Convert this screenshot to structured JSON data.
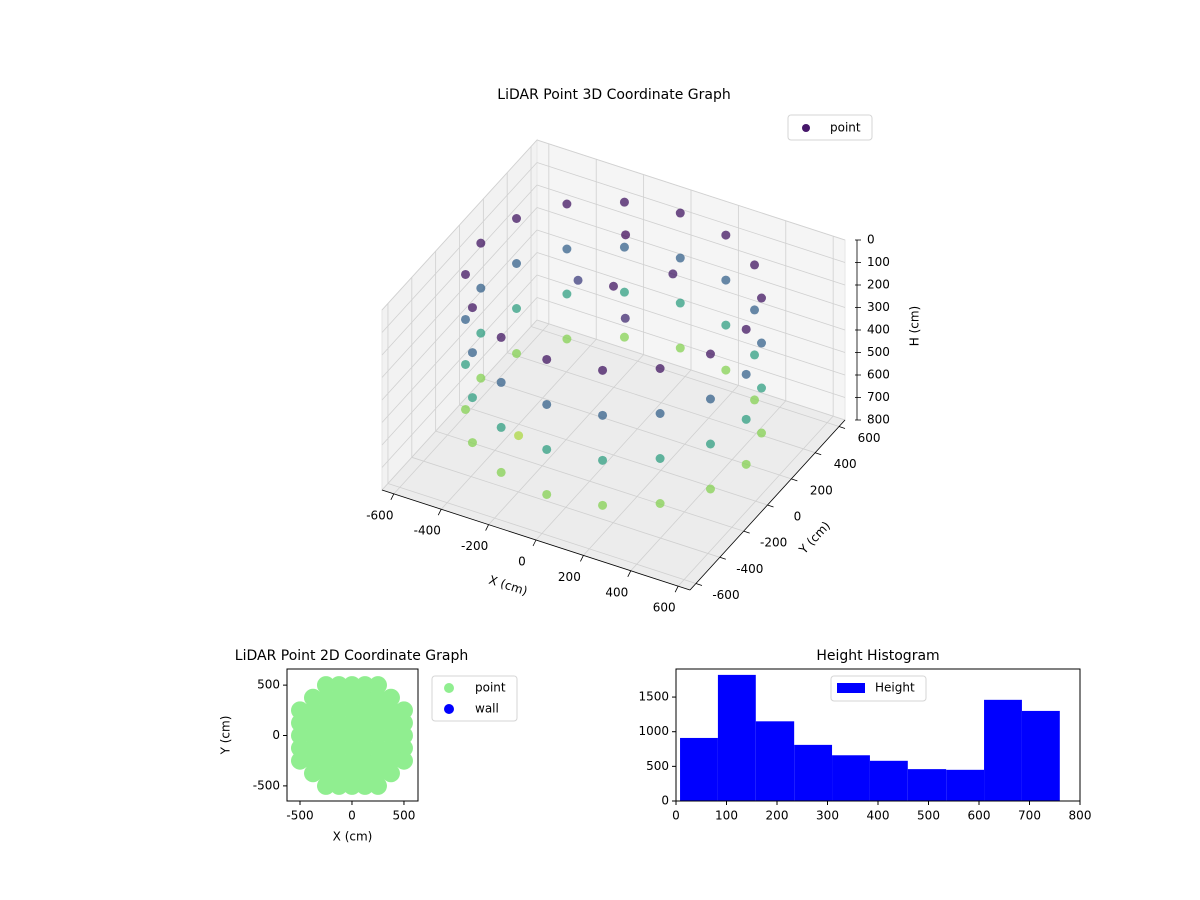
{
  "chart_data": [
    {
      "type": "scatter3d",
      "title": "LiDAR Point 3D Coordinate Graph",
      "x_label": "X (cm)",
      "y_label": "Y (cm)",
      "z_label": "H (cm)",
      "xlim": [
        -650,
        650
      ],
      "ylim": [
        -650,
        650
      ],
      "zlim": [
        800,
        0
      ],
      "xticks": [
        -600,
        -400,
        -200,
        0,
        200,
        400,
        600
      ],
      "yticks": [
        -600,
        -400,
        -200,
        0,
        200,
        400,
        600
      ],
      "zticks": [
        0,
        100,
        200,
        300,
        400,
        500,
        600,
        700,
        800
      ],
      "grid": true,
      "cmap": "viridis",
      "legend": "upper right",
      "series": [
        {
          "name": "point",
          "color": "#46176a",
          "x": [
            560,
            560,
            560,
            560,
            517,
            517,
            517,
            517,
            396,
            396,
            396,
            396,
            214,
            214,
            214,
            214,
            0,
            0,
            0,
            0,
            -214,
            -214,
            -214,
            -214,
            -396,
            -396,
            -396,
            -396,
            -517,
            -517,
            -517,
            -517,
            -560,
            -560,
            -560,
            -560,
            -517,
            -517,
            -517,
            -517,
            -396,
            -396,
            -396,
            -396,
            -214,
            -214,
            -214,
            -214,
            0,
            0,
            0,
            0,
            214,
            214,
            214,
            214,
            396,
            396,
            396,
            396,
            517,
            517,
            517,
            517,
            0,
            100,
            -200,
            -300,
            150,
            -100
          ],
          "y": [
            0,
            0,
            0,
            0,
            214,
            214,
            214,
            214,
            396,
            396,
            396,
            396,
            517,
            517,
            517,
            517,
            560,
            560,
            560,
            560,
            517,
            517,
            517,
            517,
            396,
            396,
            396,
            396,
            214,
            214,
            214,
            214,
            0,
            0,
            0,
            0,
            -214,
            -214,
            -214,
            -214,
            -396,
            -396,
            -396,
            -396,
            -517,
            -517,
            -517,
            -517,
            -560,
            -560,
            -560,
            -560,
            -517,
            -517,
            -517,
            -517,
            -396,
            -396,
            -396,
            -396,
            -214,
            -214,
            -214,
            -214,
            0,
            -100,
            100,
            -200,
            200,
            300
          ],
          "z": [
            50,
            250,
            450,
            650,
            50,
            250,
            450,
            650,
            50,
            250,
            450,
            650,
            50,
            250,
            450,
            650,
            50,
            250,
            450,
            650,
            50,
            250,
            450,
            650,
            50,
            250,
            450,
            650,
            50,
            250,
            450,
            650,
            50,
            250,
            450,
            650,
            50,
            250,
            450,
            650,
            50,
            250,
            450,
            650,
            50,
            250,
            450,
            650,
            50,
            250,
            450,
            650,
            50,
            250,
            450,
            650,
            50,
            250,
            450,
            650,
            50,
            250,
            450,
            650,
            50,
            100,
            150,
            700,
            60,
            30
          ]
        }
      ]
    },
    {
      "type": "scatter",
      "title": "LiDAR Point 2D Coordinate Graph",
      "x_label": "X (cm)",
      "y_label": "Y (cm)",
      "xlim": [
        -625,
        635
      ],
      "ylim": [
        -650,
        660
      ],
      "xticks": [
        -500,
        0,
        500
      ],
      "yticks": [
        -500,
        0,
        500
      ],
      "legend": "outside right",
      "series": [
        {
          "name": "point",
          "color": "#90ee90",
          "x": [
            -250,
            -125,
            0,
            125,
            250,
            -375,
            -250,
            -125,
            0,
            125,
            250,
            375,
            -500,
            -375,
            -250,
            -125,
            0,
            125,
            250,
            375,
            500,
            -500,
            -375,
            -250,
            -125,
            0,
            125,
            250,
            375,
            500,
            -500,
            -375,
            -250,
            -125,
            0,
            125,
            250,
            375,
            500,
            -500,
            -375,
            -250,
            -125,
            0,
            125,
            250,
            375,
            500,
            -500,
            -375,
            -250,
            -125,
            0,
            125,
            250,
            375,
            500,
            -375,
            -250,
            -125,
            0,
            125,
            250,
            375,
            -250,
            -125,
            0,
            125,
            250
          ],
          "y": [
            500,
            500,
            500,
            500,
            500,
            375,
            375,
            375,
            375,
            375,
            375,
            375,
            250,
            250,
            250,
            250,
            250,
            250,
            250,
            250,
            250,
            125,
            125,
            125,
            125,
            125,
            125,
            125,
            125,
            125,
            0,
            0,
            0,
            0,
            0,
            0,
            0,
            0,
            0,
            -125,
            -125,
            -125,
            -125,
            -125,
            -125,
            -125,
            -125,
            -125,
            -250,
            -250,
            -250,
            -250,
            -250,
            -250,
            -250,
            -250,
            -250,
            -375,
            -375,
            -375,
            -375,
            -375,
            -375,
            -375,
            -500,
            -500,
            -500,
            -500,
            -500
          ]
        },
        {
          "name": "wall",
          "color": "#0000ff",
          "x": [],
          "y": []
        }
      ]
    },
    {
      "type": "histogram",
      "title": "Height Histogram",
      "bins": [
        8,
        83,
        158,
        234,
        309,
        384,
        459,
        535,
        610,
        685,
        760
      ],
      "values": [
        910,
        1820,
        1150,
        810,
        660,
        580,
        460,
        450,
        1460,
        1300
      ],
      "series_name": "Height",
      "color": "#0000ff",
      "xlim": [
        0,
        800
      ],
      "ylim": [
        0,
        1905
      ],
      "xticks": [
        0,
        100,
        200,
        300,
        400,
        500,
        600,
        700,
        800
      ],
      "yticks": [
        0,
        500,
        1000,
        1500
      ],
      "legend": "upper center"
    }
  ]
}
